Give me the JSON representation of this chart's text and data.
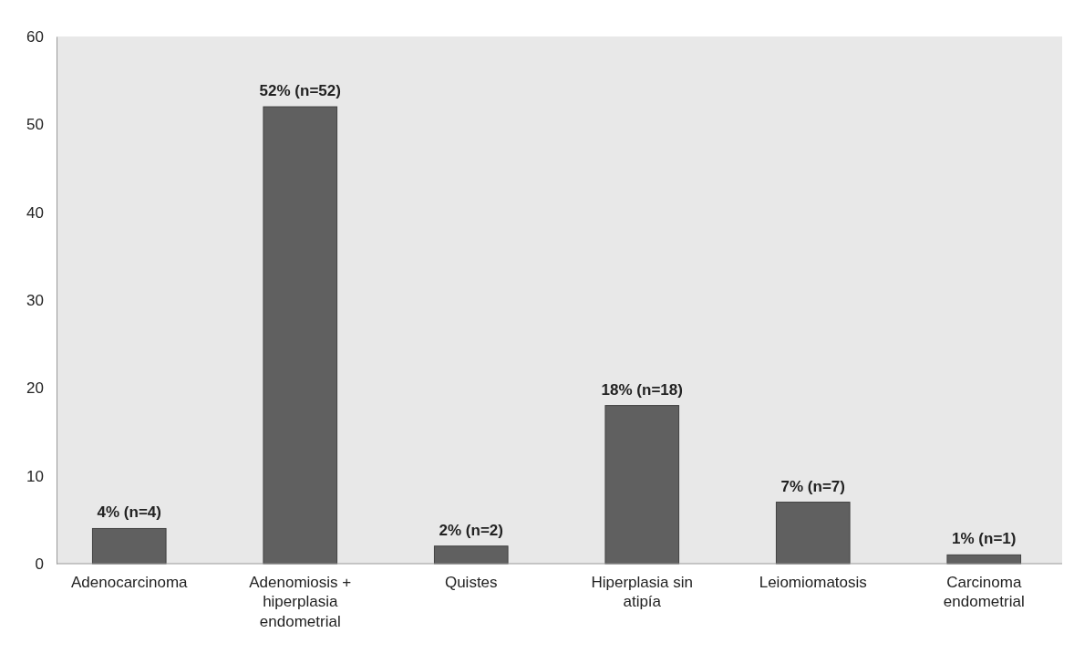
{
  "chart_data": {
    "type": "bar",
    "categories": [
      "Adenocarcinoma",
      "Adenomiosis + hiperplasia endometrial",
      "Quistes",
      "Hiperplasia sin atipía",
      "Leiomiomatosis",
      "Carcinoma endometrial"
    ],
    "values": [
      4,
      52,
      2,
      18,
      7,
      1
    ],
    "value_labels": [
      "4% (n=4)",
      "52% (n=52)",
      "2% (n=2)",
      "18% (n=18)",
      "7% (n=7)",
      "1% (n=1)"
    ],
    "color": "#606060",
    "ylim": [
      0,
      60
    ],
    "yticks": [
      0,
      10,
      20,
      30,
      40,
      50,
      60
    ],
    "grid": false
  }
}
